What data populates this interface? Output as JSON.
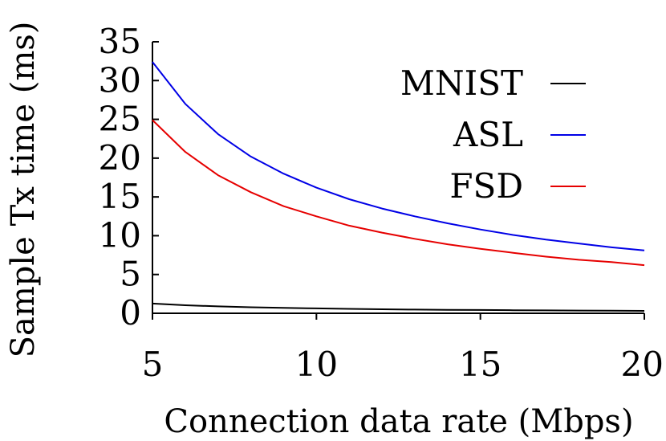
{
  "chart_data": {
    "type": "line",
    "title": "",
    "xlabel": "Connection data rate (Mbps)",
    "ylabel": "Sample Tx time (ms)",
    "xlim": [
      5,
      20
    ],
    "ylim": [
      0,
      35
    ],
    "xticks": [
      "5",
      "10",
      "15",
      "20"
    ],
    "yticks": [
      "0",
      "5",
      "10",
      "15",
      "20",
      "25",
      "30",
      "35"
    ],
    "grid": false,
    "legend_position": "top-right",
    "x": [
      5,
      6,
      7,
      8,
      9,
      10,
      11,
      12,
      13,
      14,
      15,
      16,
      17,
      18,
      19,
      20
    ],
    "series": [
      {
        "name": "MNIST",
        "color": "#000000",
        "values": [
          1.25,
          1.04,
          0.89,
          0.78,
          0.69,
          0.63,
          0.57,
          0.52,
          0.48,
          0.45,
          0.42,
          0.39,
          0.37,
          0.35,
          0.33,
          0.31
        ]
      },
      {
        "name": "ASL",
        "color": "#0000e6",
        "values": [
          32.4,
          27.0,
          23.1,
          20.2,
          18.0,
          16.2,
          14.7,
          13.5,
          12.5,
          11.6,
          10.8,
          10.1,
          9.5,
          9.0,
          8.5,
          8.1
        ]
      },
      {
        "name": "FSD",
        "color": "#e60000",
        "values": [
          24.9,
          20.8,
          17.8,
          15.6,
          13.8,
          12.5,
          11.3,
          10.4,
          9.6,
          8.9,
          8.3,
          7.8,
          7.3,
          6.9,
          6.6,
          6.2
        ]
      }
    ]
  }
}
